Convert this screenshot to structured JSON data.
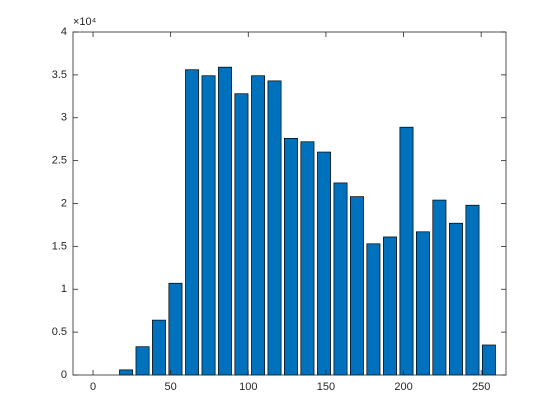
{
  "chart_data": {
    "type": "bar",
    "x": [
      0,
      10.6,
      21.3,
      31.9,
      42.5,
      53.1,
      63.8,
      74.4,
      85,
      95.6,
      106.3,
      116.9,
      127.5,
      138.1,
      148.8,
      159.4,
      170,
      180.6,
      191.3,
      201.9,
      212.5,
      223.1,
      233.8,
      244.4,
      255
    ],
    "values": [
      0,
      0,
      0.06,
      0.33,
      0.64,
      1.07,
      3.56,
      3.49,
      3.59,
      3.28,
      3.49,
      3.43,
      2.76,
      2.72,
      2.6,
      2.24,
      2.08,
      1.53,
      1.61,
      2.89,
      1.67,
      2.04,
      1.77,
      1.98,
      0.35
    ],
    "color": "#0072bd",
    "xlim": [
      -12.9,
      266
    ],
    "xticks": [
      0,
      50,
      100,
      150,
      200,
      250
    ],
    "ylim": [
      0,
      4
    ],
    "yticks": [
      0,
      0.5,
      1,
      1.5,
      2,
      2.5,
      3,
      3.5,
      4
    ],
    "y_exponent_label": "×10⁴"
  }
}
